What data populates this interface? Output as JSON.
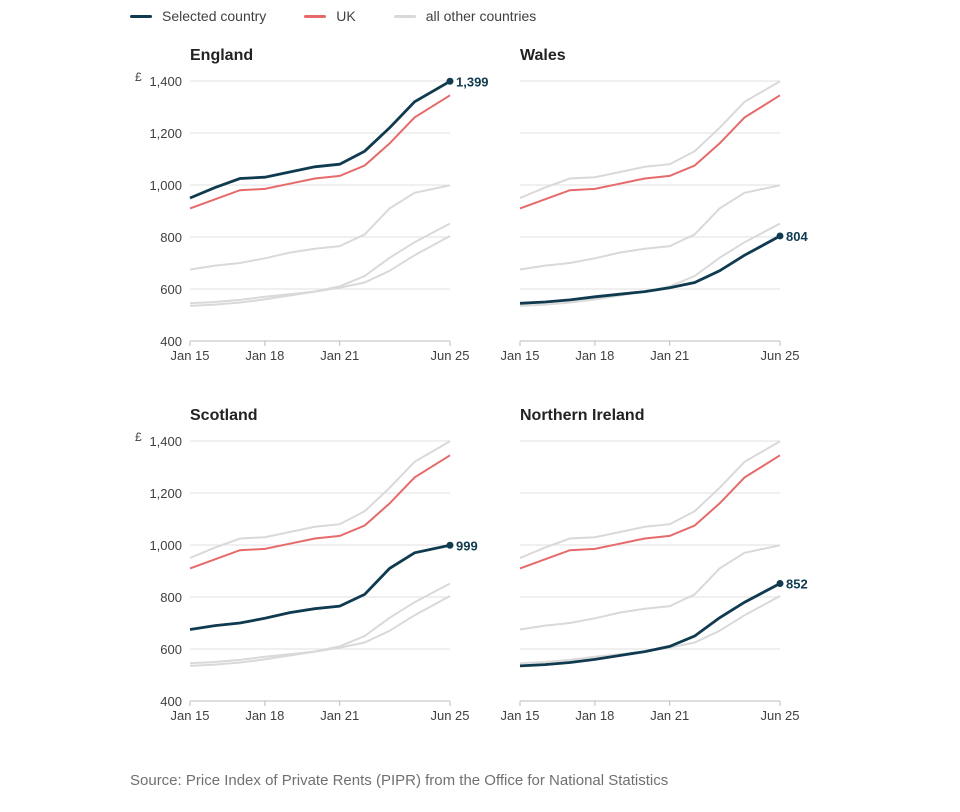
{
  "legend": {
    "selected_label": "Selected country",
    "uk_label": "UK",
    "others_label": "all other countries"
  },
  "source": "Source: Price Index of Private Rents (PIPR) from the Office for National Statistics",
  "colors": {
    "selected": "#0f3a4f",
    "uk": "#e66a6a",
    "others": "#d9d9d9",
    "grid": "#e0e0e0",
    "axis_text": "#414042"
  },
  "currency_symbol": "£",
  "chart_data": {
    "type": "line",
    "y_ticks": [
      400,
      600,
      800,
      1000,
      1200,
      1400
    ],
    "y_tick_labels": [
      "400",
      "600",
      "800",
      "1,000",
      "1,200",
      "1,400"
    ],
    "ylim": [
      400,
      1400
    ],
    "x_tick_labels": [
      "Jan 15",
      "Jan 18",
      "Jan 21",
      "Jun 25"
    ],
    "x_tick_positions": [
      2015.0,
      2018.0,
      2021.0,
      2025.42
    ],
    "xlim": [
      2015.0,
      2025.42
    ],
    "series": {
      "England": {
        "x": [
          2015.0,
          2016.0,
          2017.0,
          2018.0,
          2019.0,
          2020.0,
          2021.0,
          2022.0,
          2023.0,
          2024.0,
          2025.42
        ],
        "y": [
          950,
          990,
          1025,
          1030,
          1050,
          1070,
          1080,
          1130,
          1220,
          1320,
          1399
        ]
      },
      "Wales": {
        "x": [
          2015.0,
          2016.0,
          2017.0,
          2018.0,
          2019.0,
          2020.0,
          2021.0,
          2022.0,
          2023.0,
          2024.0,
          2025.42
        ],
        "y": [
          545,
          550,
          558,
          570,
          580,
          590,
          605,
          625,
          670,
          730,
          804
        ]
      },
      "Scotland": {
        "x": [
          2015.0,
          2016.0,
          2017.0,
          2018.0,
          2019.0,
          2020.0,
          2021.0,
          2022.0,
          2023.0,
          2024.0,
          2025.42
        ],
        "y": [
          675,
          690,
          700,
          718,
          740,
          755,
          765,
          810,
          910,
          970,
          999
        ]
      },
      "Northern Ireland": {
        "x": [
          2015.0,
          2016.0,
          2017.0,
          2018.0,
          2019.0,
          2020.0,
          2021.0,
          2022.0,
          2023.0,
          2024.0,
          2025.42
        ],
        "y": [
          535,
          540,
          548,
          560,
          575,
          590,
          610,
          650,
          720,
          780,
          852
        ]
      },
      "UK": {
        "x": [
          2015.0,
          2016.0,
          2017.0,
          2018.0,
          2019.0,
          2020.0,
          2021.0,
          2022.0,
          2023.0,
          2024.0,
          2025.42
        ],
        "y": [
          910,
          945,
          980,
          985,
          1005,
          1025,
          1035,
          1075,
          1160,
          1260,
          1345
        ]
      }
    },
    "panels": [
      {
        "title": "England",
        "selected": "England",
        "end_label": "1,399",
        "show_currency": true
      },
      {
        "title": "Wales",
        "selected": "Wales",
        "end_label": "804",
        "show_currency": false
      },
      {
        "title": "Scotland",
        "selected": "Scotland",
        "end_label": "999",
        "show_currency": true
      },
      {
        "title": "Northern Ireland",
        "selected": "Northern Ireland",
        "end_label": "852",
        "show_currency": false
      }
    ]
  }
}
